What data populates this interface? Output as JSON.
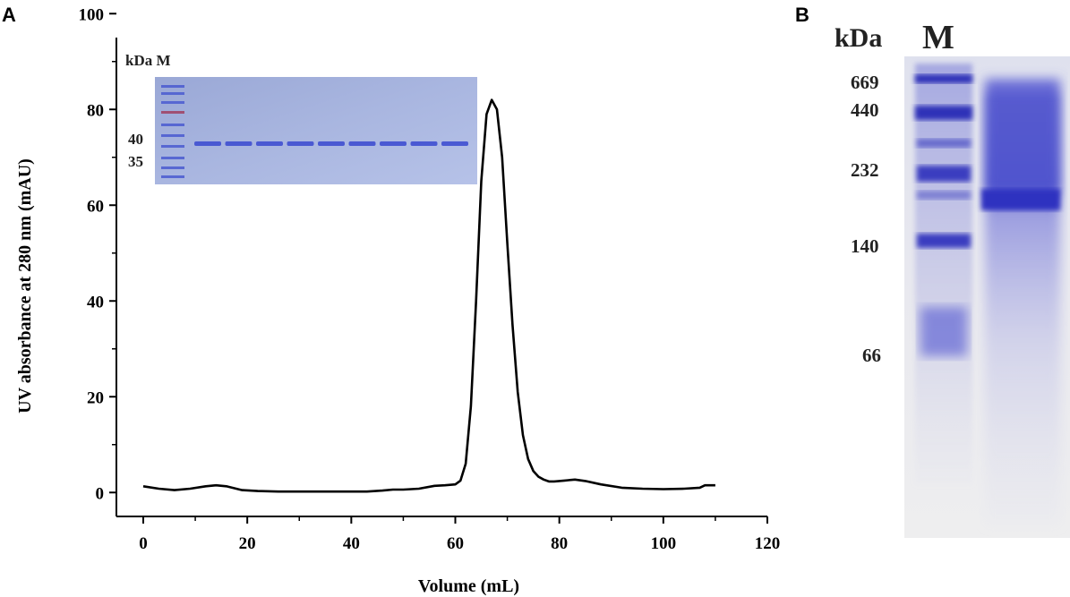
{
  "panel_a": {
    "letter": "A",
    "inset": {
      "header": "kDa M",
      "marker_labels": [
        "40",
        "35"
      ],
      "lane_count": 9
    }
  },
  "panel_b": {
    "letter": "B",
    "header_kda": "kDa",
    "header_m": "M",
    "marker_labels": [
      "669",
      "440",
      "232",
      "140",
      "66"
    ]
  },
  "colors": {
    "line": "#000000",
    "gel_bg_a": "#9fb0dc",
    "gel_band": "#3f4fd0",
    "gel_bg_b": "#e7e8f0",
    "gel_stain": "#3d3fc4"
  },
  "chart_data": {
    "type": "line",
    "xlabel": "Volume (mL)",
    "ylabel": "UV absorbance at 280 nm (mAU)",
    "xlim": [
      0,
      120
    ],
    "ylim": [
      0,
      100
    ],
    "xticks": [
      0,
      20,
      40,
      60,
      80,
      100,
      120
    ],
    "yticks": [
      0,
      20,
      40,
      60,
      80,
      100
    ],
    "grid": false,
    "series": [
      {
        "x": [
          0,
          3,
          6,
          9,
          12,
          14,
          16,
          19,
          22,
          26,
          30,
          35,
          40,
          43,
          46,
          48,
          50,
          53,
          56,
          58,
          60,
          61,
          62,
          63,
          64,
          65,
          66,
          67,
          68,
          69,
          70,
          71,
          72,
          73,
          74,
          75,
          76,
          77,
          78,
          79,
          81,
          83,
          85,
          88,
          92,
          96,
          100,
          104,
          107,
          108,
          110
        ],
        "y": [
          1.3,
          0.8,
          0.5,
          0.8,
          1.3,
          1.5,
          1.3,
          0.5,
          0.3,
          0.2,
          0.2,
          0.2,
          0.2,
          0.2,
          0.4,
          0.6,
          0.6,
          0.8,
          1.4,
          1.5,
          1.7,
          2.5,
          6,
          18,
          40,
          65,
          79,
          82,
          80,
          70,
          52,
          35,
          21,
          12,
          7,
          4.5,
          3.3,
          2.7,
          2.3,
          2.3,
          2.5,
          2.7,
          2.4,
          1.7,
          1.0,
          0.8,
          0.7,
          0.8,
          1.0,
          1.5,
          1.5
        ]
      }
    ]
  }
}
